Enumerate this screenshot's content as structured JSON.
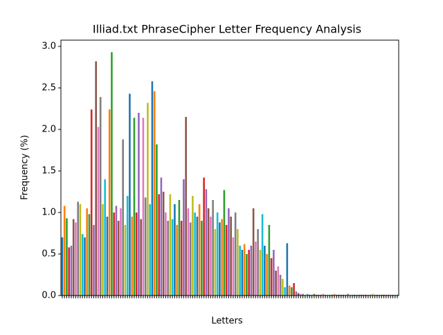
{
  "chart_data": {
    "type": "bar",
    "title": "Illiad.txt PhraseCipher Letter Frequency Analysis",
    "xlabel": "Letters",
    "ylabel": "Frequency (%)",
    "colors": [
      "#1f77b4",
      "#ff7f0e",
      "#2ca02c",
      "#d62728",
      "#9467bd",
      "#8c564b",
      "#e377c2",
      "#7f7f7f",
      "#bcbd22",
      "#17becf"
    ],
    "categories": [
      null,
      null,
      null,
      null,
      null,
      null,
      null,
      null,
      null,
      null,
      null,
      null,
      null,
      null,
      null,
      null,
      null,
      null,
      null,
      null,
      null,
      null,
      null,
      null,
      null,
      null,
      null,
      null,
      null,
      null,
      null,
      null,
      null,
      null,
      null,
      null,
      null,
      null,
      null,
      null,
      null,
      null,
      null,
      null,
      null,
      null,
      null,
      null,
      null,
      null,
      null,
      null,
      null,
      null,
      null,
      null,
      null,
      null,
      null,
      null,
      null,
      null,
      null,
      null,
      null,
      null,
      null,
      null,
      null,
      null,
      null,
      null,
      null,
      null,
      null,
      null,
      null,
      null,
      null,
      null,
      null,
      null,
      null,
      null,
      null,
      null,
      null,
      null,
      null,
      null,
      null,
      null,
      null,
      null,
      null,
      null,
      null,
      null,
      null,
      null,
      null,
      null,
      null,
      null,
      null,
      null,
      null,
      null,
      null,
      null,
      null,
      null,
      null,
      null,
      null,
      null,
      null,
      null,
      null,
      null,
      null,
      null,
      null,
      null,
      null,
      null,
      null,
      null,
      null,
      null,
      null,
      null,
      null,
      null,
      null,
      null,
      null,
      null,
      null,
      null,
      null,
      null,
      null,
      null,
      null,
      null,
      null,
      null,
      null,
      null
    ],
    "values": [
      0.7,
      1.08,
      0.93,
      0.58,
      0.6,
      0.92,
      0.88,
      1.13,
      1.1,
      0.74,
      0.7,
      1.05,
      0.98,
      2.24,
      0.85,
      2.82,
      2.03,
      2.39,
      1.1,
      1.4,
      0.95,
      2.24,
      2.93,
      1.0,
      1.08,
      0.9,
      1.05,
      1.88,
      0.85,
      1.2,
      2.43,
      0.95,
      2.14,
      1.0,
      2.2,
      0.92,
      2.14,
      1.18,
      2.32,
      1.1,
      2.58,
      2.46,
      1.82,
      1.22,
      1.42,
      1.25,
      1.0,
      0.9,
      1.22,
      0.92,
      1.1,
      0.85,
      1.15,
      0.9,
      1.4,
      2.15,
      1.05,
      0.88,
      1.2,
      1.0,
      0.95,
      1.1,
      0.9,
      1.42,
      1.28,
      1.05,
      0.95,
      1.15,
      0.8,
      1.0,
      0.88,
      0.92,
      1.27,
      0.85,
      1.05,
      0.95,
      0.7,
      1.0,
      0.8,
      0.6,
      0.55,
      0.62,
      0.5,
      0.55,
      0.6,
      1.05,
      0.65,
      0.8,
      0.55,
      0.98,
      0.6,
      0.5,
      0.85,
      0.45,
      0.55,
      0.3,
      0.35,
      0.25,
      0.2,
      0.1,
      0.63,
      0.12,
      0.1,
      0.15,
      0.05,
      0.03,
      0.02,
      0.02,
      0.01,
      0.02,
      0.01,
      0.01,
      0.02,
      0.01,
      0.01,
      0.01,
      0.02,
      0.01,
      0.01,
      0.01,
      0.01,
      0.02,
      0.01,
      0.01,
      0.01,
      0.01,
      0.01,
      0.02,
      0.01,
      0.01,
      0.01,
      0.01,
      0.01,
      0.01,
      0.01,
      0.01,
      0.01,
      0.01,
      0.02,
      0.01,
      0.01,
      0.01,
      0.01,
      0.01,
      0.01,
      0.01,
      0.01,
      0.01,
      0.01,
      0.01
    ],
    "ylim": [
      0,
      3.075
    ],
    "yticks": [
      {
        "value": 0,
        "label": "0.0"
      },
      0.5,
      {
        "value": 1,
        "label": "1.0"
      },
      1.5,
      {
        "value": 2,
        "label": "2.0"
      },
      2.5,
      {
        "value": 3,
        "label": "3.0"
      }
    ]
  }
}
